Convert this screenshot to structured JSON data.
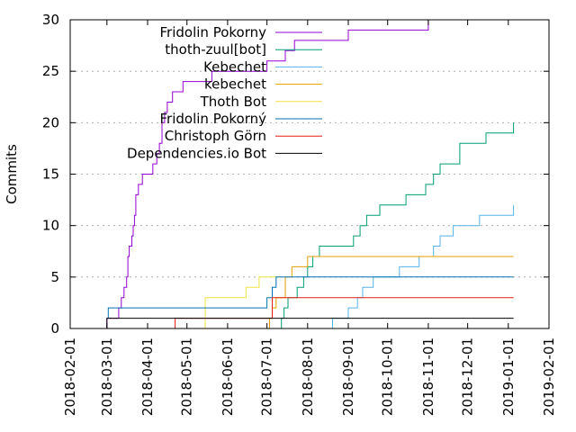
{
  "chart_data": {
    "type": "line",
    "title": "",
    "xlabel": "",
    "ylabel": "Commits",
    "xlim": [
      "2018-02-01",
      "2019-02-01"
    ],
    "ylim": [
      0,
      30
    ],
    "x_tick_labels": [
      "2018-02-01",
      "2018-03-01",
      "2018-04-01",
      "2018-05-01",
      "2018-06-01",
      "2018-07-01",
      "2018-08-01",
      "2018-09-01",
      "2018-10-01",
      "2018-11-01",
      "2018-12-01",
      "2019-01-01",
      "2019-02-01"
    ],
    "y_tick_labels": [
      "0",
      "5",
      "10",
      "15",
      "20",
      "25",
      "30"
    ],
    "y_ticks": [
      0,
      5,
      10,
      15,
      20,
      25,
      30
    ],
    "grid": "horizontal dashed at y ticks",
    "legend_position": "top-left",
    "series": [
      {
        "name": "Fridolin Pokorny",
        "color": "#9400d3",
        "points": [
          [
            "2018-03-01",
            0
          ],
          [
            "2018-03-01",
            1
          ],
          [
            "2018-03-10",
            2
          ],
          [
            "2018-03-12",
            3
          ],
          [
            "2018-03-14",
            4
          ],
          [
            "2018-03-16",
            5
          ],
          [
            "2018-03-17",
            7
          ],
          [
            "2018-03-18",
            8
          ],
          [
            "2018-03-20",
            9
          ],
          [
            "2018-03-21",
            10
          ],
          [
            "2018-03-22",
            11
          ],
          [
            "2018-03-23",
            13
          ],
          [
            "2018-03-25",
            14
          ],
          [
            "2018-03-28",
            15
          ],
          [
            "2018-04-05",
            16
          ],
          [
            "2018-04-08",
            17
          ],
          [
            "2018-04-10",
            18
          ],
          [
            "2018-04-12",
            20
          ],
          [
            "2018-04-14",
            21
          ],
          [
            "2018-04-16",
            22
          ],
          [
            "2018-04-20",
            23
          ],
          [
            "2018-04-28",
            24
          ],
          [
            "2018-05-20",
            25
          ],
          [
            "2018-07-01",
            26
          ],
          [
            "2018-07-15",
            27
          ],
          [
            "2018-07-22",
            28
          ],
          [
            "2018-09-01",
            29
          ],
          [
            "2018-11-01",
            30
          ],
          [
            "2019-01-05",
            30
          ]
        ]
      },
      {
        "name": "thoth-zuul[bot]",
        "color": "#009e73",
        "points": [
          [
            "2018-07-10",
            0
          ],
          [
            "2018-07-12",
            1
          ],
          [
            "2018-07-14",
            2
          ],
          [
            "2018-07-17",
            3
          ],
          [
            "2018-07-24",
            4
          ],
          [
            "2018-07-29",
            5
          ],
          [
            "2018-08-01",
            6
          ],
          [
            "2018-08-05",
            7
          ],
          [
            "2018-08-10",
            8
          ],
          [
            "2018-09-05",
            9
          ],
          [
            "2018-09-10",
            10
          ],
          [
            "2018-09-15",
            11
          ],
          [
            "2018-09-25",
            12
          ],
          [
            "2018-10-15",
            13
          ],
          [
            "2018-10-30",
            14
          ],
          [
            "2018-11-05",
            15
          ],
          [
            "2018-11-10",
            16
          ],
          [
            "2018-11-25",
            18
          ],
          [
            "2018-12-15",
            19
          ],
          [
            "2019-01-05",
            20
          ]
        ]
      },
      {
        "name": "Kebechet",
        "color": "#56b4e9",
        "points": [
          [
            "2018-08-15",
            0
          ],
          [
            "2018-08-20",
            1
          ],
          [
            "2018-09-01",
            2
          ],
          [
            "2018-09-08",
            3
          ],
          [
            "2018-09-12",
            4
          ],
          [
            "2018-09-20",
            5
          ],
          [
            "2018-10-10",
            6
          ],
          [
            "2018-10-25",
            7
          ],
          [
            "2018-11-05",
            8
          ],
          [
            "2018-11-10",
            9
          ],
          [
            "2018-11-20",
            10
          ],
          [
            "2018-12-10",
            11
          ],
          [
            "2019-01-05",
            12
          ]
        ]
      },
      {
        "name": "kebechet",
        "color": "#e69f00",
        "points": [
          [
            "2018-07-01",
            0
          ],
          [
            "2018-07-03",
            1
          ],
          [
            "2018-07-05",
            2
          ],
          [
            "2018-07-08",
            3
          ],
          [
            "2018-07-15",
            5
          ],
          [
            "2018-07-20",
            6
          ],
          [
            "2018-08-01",
            7
          ],
          [
            "2019-01-05",
            7
          ]
        ]
      },
      {
        "name": "Thoth Bot",
        "color": "#f0e442",
        "points": [
          [
            "2018-05-15",
            0
          ],
          [
            "2018-05-15",
            3
          ],
          [
            "2018-06-15",
            4
          ],
          [
            "2018-06-25",
            5
          ],
          [
            "2018-07-12",
            5
          ]
        ]
      },
      {
        "name": "Fridolin Pokorný",
        "color": "#0072b2",
        "points": [
          [
            "2018-03-01",
            1
          ],
          [
            "2018-03-02",
            2
          ],
          [
            "2018-06-30",
            2
          ],
          [
            "2018-07-01",
            3
          ],
          [
            "2018-07-05",
            4
          ],
          [
            "2018-07-08",
            5
          ],
          [
            "2019-01-05",
            5
          ]
        ]
      },
      {
        "name": "Christoph Görn",
        "color": "#e51e10",
        "points": [
          [
            "2018-04-22",
            0
          ],
          [
            "2018-04-22",
            1
          ],
          [
            "2018-07-01",
            1
          ],
          [
            "2018-07-05",
            3
          ],
          [
            "2019-01-05",
            3
          ]
        ]
      },
      {
        "name": "Dependencies.io Bot",
        "color": "#000000",
        "points": [
          [
            "2018-03-01",
            0
          ],
          [
            "2018-03-01",
            1
          ],
          [
            "2019-01-05",
            1
          ]
        ]
      }
    ]
  }
}
